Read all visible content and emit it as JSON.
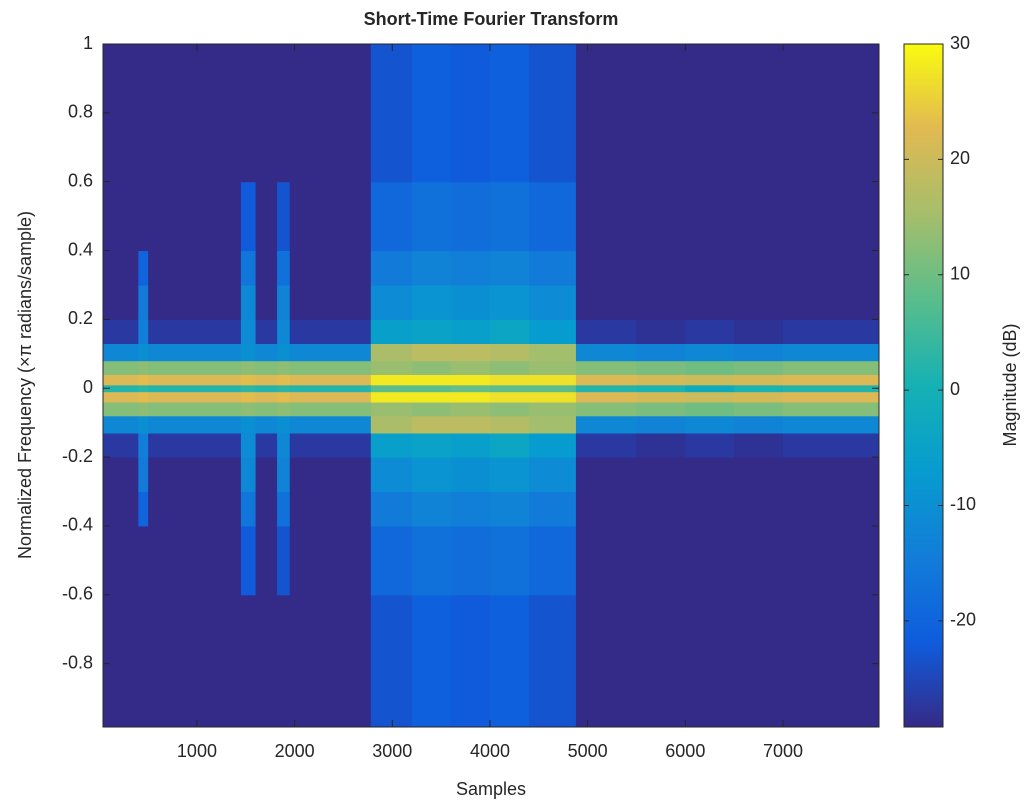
{
  "chart_data": {
    "type": "heatmap",
    "title": "Short-Time Fourier Transform",
    "xlabel": "Samples",
    "ylabel": "Normalized Frequency (×π radians/sample)",
    "colorbar_label": "Magnitude (dB)",
    "colormap": "parula",
    "xlim": [
      38,
      7983
    ],
    "ylim": [
      -0.984,
      1
    ],
    "clim": [
      -29.2,
      30
    ],
    "xticks": [
      1000,
      2000,
      3000,
      4000,
      5000,
      6000,
      7000
    ],
    "yticks": [
      -0.8,
      -0.6,
      -0.4,
      -0.2,
      0,
      0.2,
      0.4,
      0.6,
      0.8,
      1
    ],
    "colorbar_ticks": [
      -20,
      -10,
      0,
      10,
      20,
      30
    ],
    "x_edges": [
      38,
      400,
      500,
      1450,
      1600,
      1820,
      1950,
      2780,
      3200,
      3600,
      4000,
      4400,
      4880,
      5500,
      6000,
      6500,
      7000,
      7983
    ],
    "y_edges": [
      -0.984,
      -0.6,
      -0.4,
      -0.3,
      -0.2,
      -0.13,
      -0.08,
      -0.04,
      -0.01,
      0.01,
      0.04,
      0.08,
      0.13,
      0.2,
      0.3,
      0.4,
      0.6,
      1
    ],
    "z": [
      [
        -29,
        -29,
        -29,
        -29,
        -29,
        -29,
        -29,
        -23,
        -21,
        -22,
        -21,
        -23,
        -29,
        -29,
        -29,
        -29,
        -29
      ],
      [
        -29,
        -29,
        -29,
        -22,
        -29,
        -23,
        -29,
        -19,
        -17,
        -18,
        -17,
        -19,
        -29,
        -29,
        -29,
        -29,
        -29
      ],
      [
        -29,
        -20,
        -29,
        -16,
        -29,
        -17,
        -29,
        -15,
        -13,
        -14,
        -13,
        -15,
        -29,
        -29,
        -29,
        -29,
        -29
      ],
      [
        -29,
        -15,
        -29,
        -12,
        -29,
        -13,
        -29,
        -11,
        -9,
        -10,
        -9,
        -11,
        -29,
        -29,
        -29,
        -29,
        -29
      ],
      [
        -27,
        -14,
        -27,
        -11,
        -27,
        -12,
        -27,
        -6,
        -5,
        -6,
        -4,
        -7,
        -27,
        -28,
        -27,
        -28,
        -27
      ],
      [
        -12,
        -10,
        -12,
        -10,
        -12,
        -10,
        -12,
        16,
        18,
        18,
        17,
        15,
        -12,
        -13,
        -12,
        -13,
        -12
      ],
      [
        12,
        13,
        12,
        13,
        12,
        13,
        12,
        14,
        13,
        14,
        13,
        14,
        12,
        11,
        10,
        11,
        12
      ],
      [
        22,
        23,
        22,
        23,
        22,
        23,
        22,
        28,
        28,
        28,
        27,
        27,
        22,
        21,
        20,
        21,
        22
      ],
      [
        2,
        3,
        2,
        3,
        2,
        3,
        2,
        8,
        8,
        9,
        8,
        8,
        2,
        1,
        -2,
        1,
        2
      ],
      [
        22,
        23,
        22,
        23,
        22,
        23,
        22,
        28,
        28,
        28,
        27,
        27,
        22,
        21,
        20,
        21,
        22
      ],
      [
        12,
        13,
        12,
        13,
        12,
        13,
        12,
        14,
        13,
        14,
        13,
        14,
        12,
        11,
        10,
        11,
        12
      ],
      [
        -12,
        -10,
        -12,
        -10,
        -12,
        -10,
        -12,
        16,
        18,
        18,
        17,
        15,
        -12,
        -13,
        -12,
        -13,
        -12
      ],
      [
        -27,
        -14,
        -27,
        -11,
        -27,
        -12,
        -27,
        -6,
        -5,
        -6,
        -4,
        -7,
        -27,
        -28,
        -27,
        -28,
        -27
      ],
      [
        -29,
        -15,
        -29,
        -12,
        -29,
        -13,
        -29,
        -11,
        -9,
        -10,
        -9,
        -11,
        -29,
        -29,
        -29,
        -29,
        -29
      ],
      [
        -29,
        -20,
        -29,
        -16,
        -29,
        -17,
        -29,
        -15,
        -13,
        -14,
        -13,
        -15,
        -29,
        -29,
        -29,
        -29,
        -29
      ],
      [
        -29,
        -29,
        -29,
        -22,
        -29,
        -23,
        -29,
        -19,
        -17,
        -18,
        -17,
        -19,
        -29,
        -29,
        -29,
        -29,
        -29
      ],
      [
        -29,
        -29,
        -29,
        -29,
        -29,
        -29,
        -29,
        -23,
        -21,
        -22,
        -21,
        -23,
        -29,
        -29,
        -29,
        -29,
        -29
      ]
    ]
  }
}
